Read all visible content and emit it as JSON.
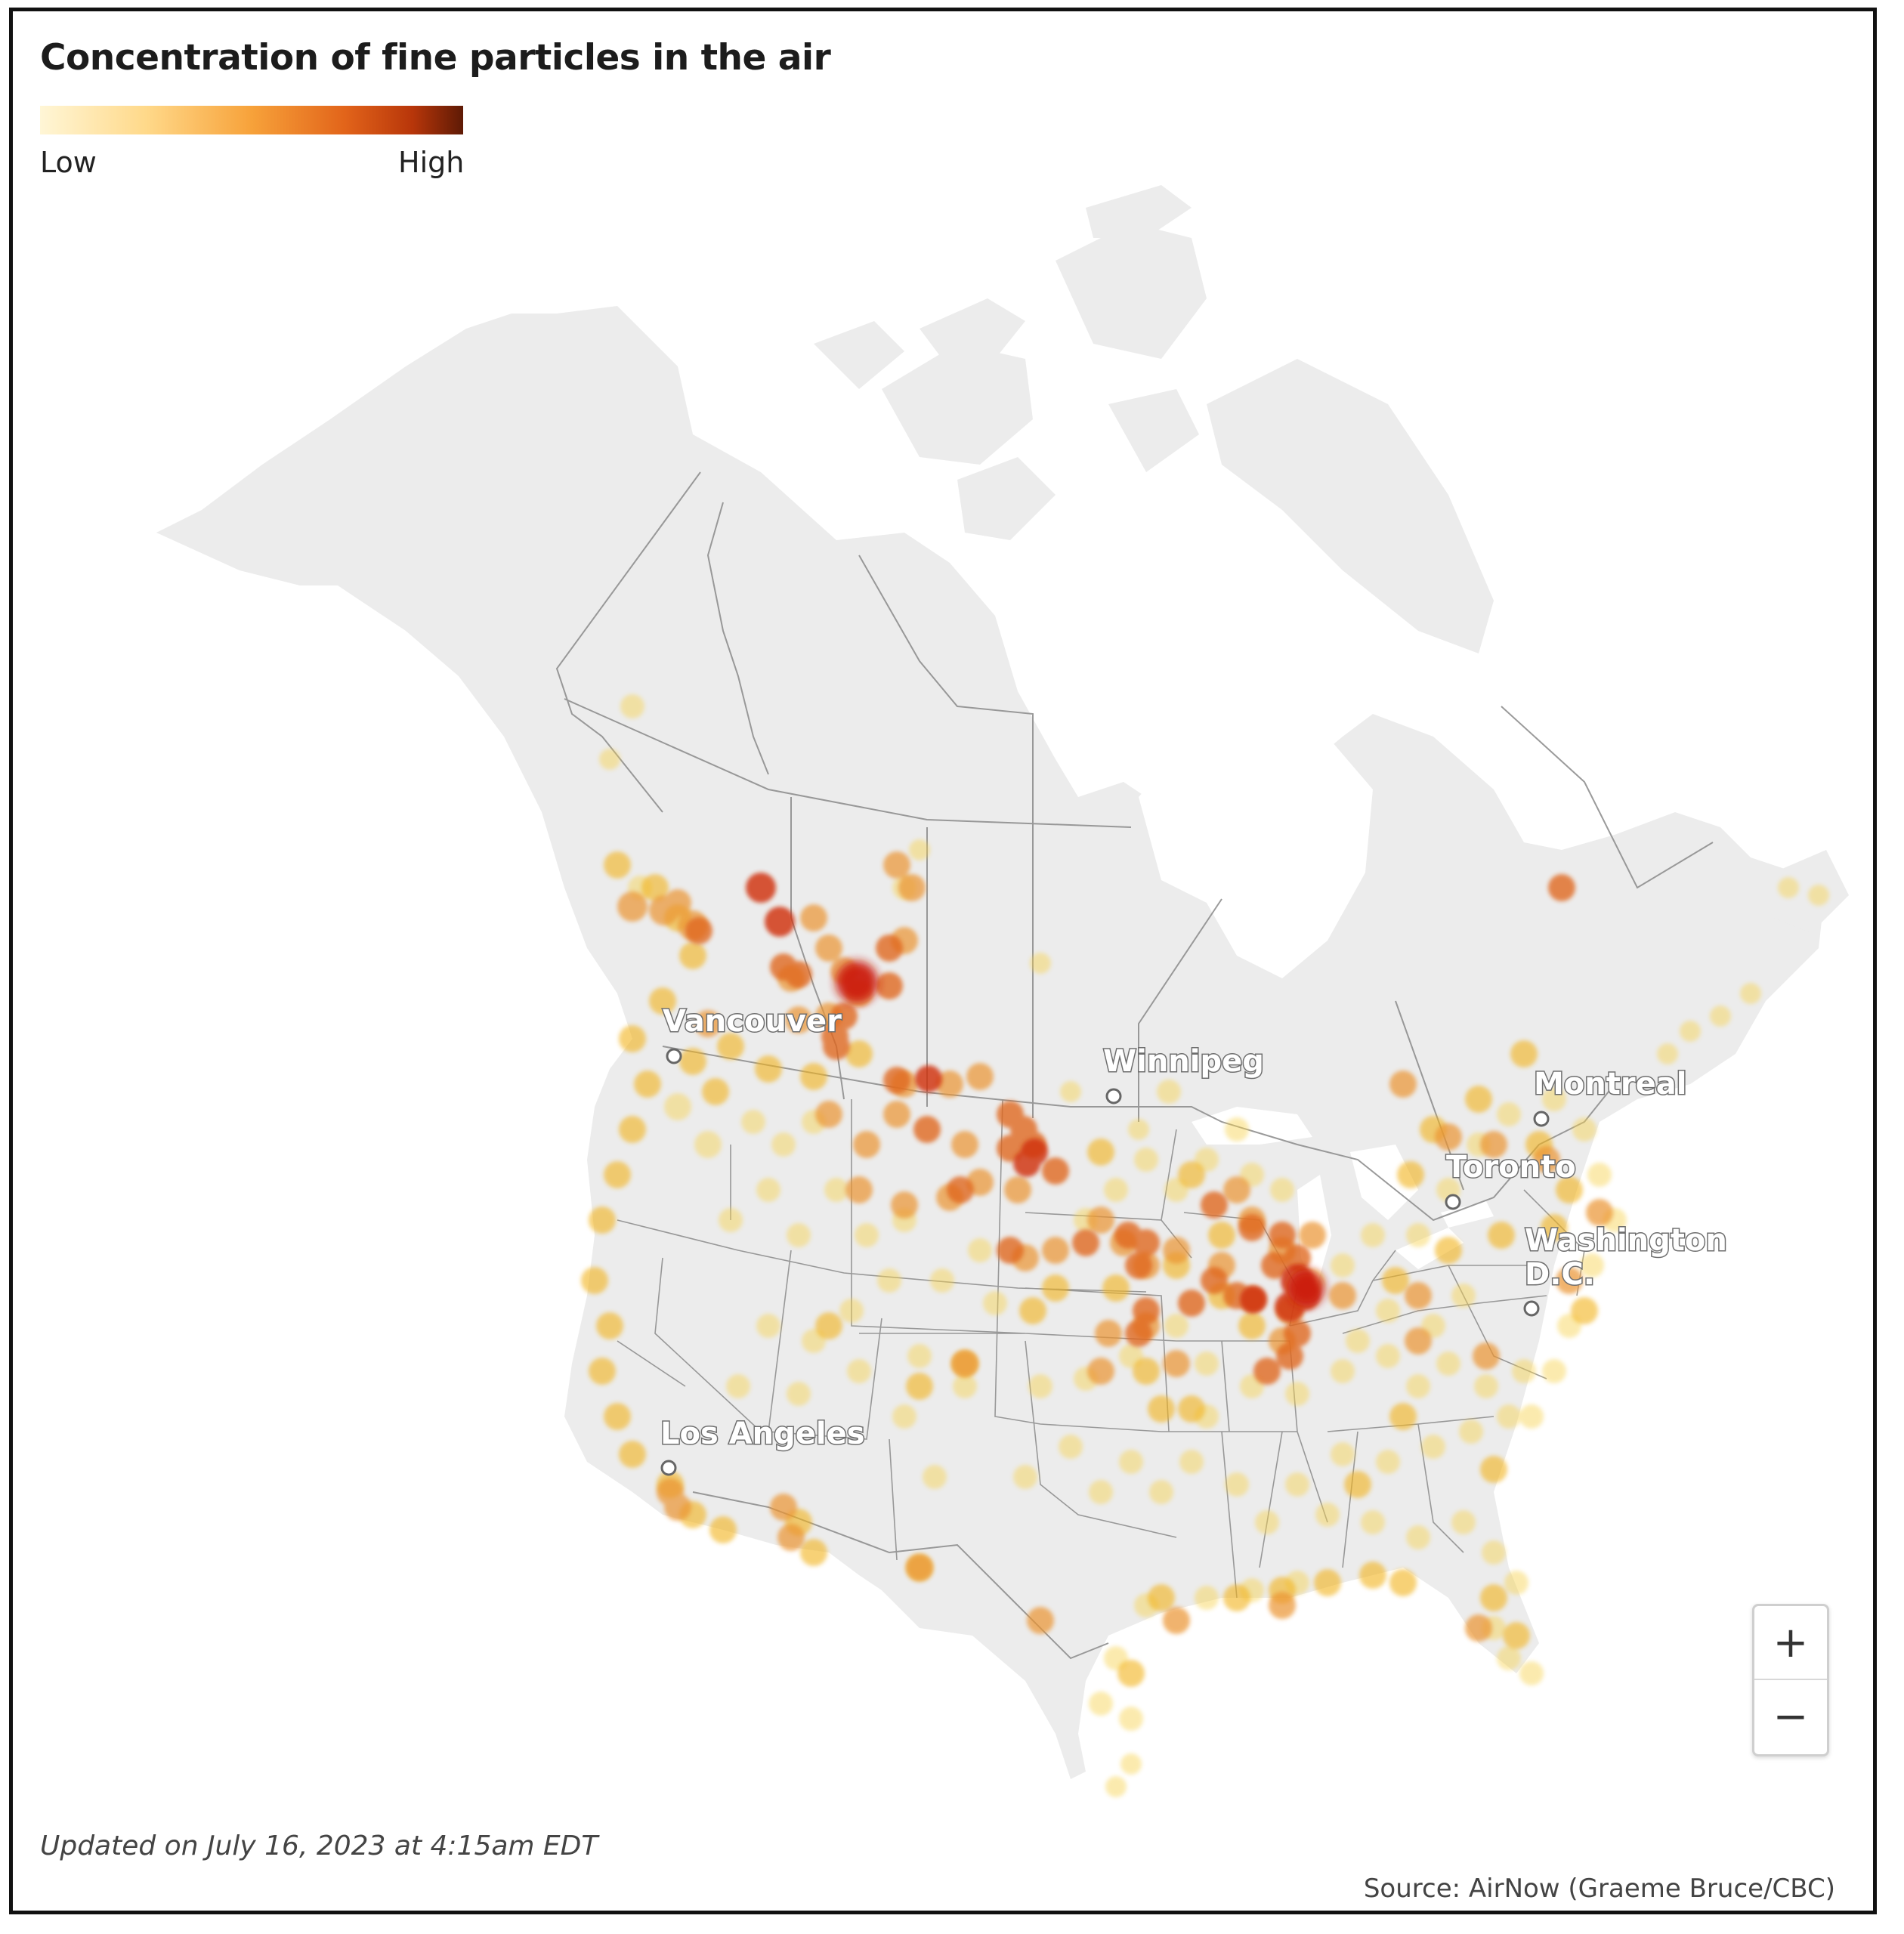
{
  "title": "Concentration of fine particles in the air",
  "legend": {
    "low_label": "Low",
    "high_label": "High",
    "colors": [
      "#fff6d6",
      "#ffd98a",
      "#f7a23a",
      "#e2641a",
      "#b8360a",
      "#5e1a05"
    ]
  },
  "cities": [
    {
      "name": "Vancouver"
    },
    {
      "name": "Winnipeg"
    },
    {
      "name": "Montreal"
    },
    {
      "name": "Toronto"
    },
    {
      "name": "Washington D.C.",
      "line1": "Washington",
      "line2": "D.C."
    },
    {
      "name": "Los Angeles"
    }
  ],
  "zoom": {
    "in_label": "+",
    "out_label": "−"
  },
  "footer": {
    "updated": "Updated on July 16, 2023 at 4:15am EDT",
    "source": "Source: AirNow (Graeme Bruce/CBC)"
  },
  "colors": {
    "land": "#ececec",
    "water": "#ffffff",
    "border": "#8f8f8f"
  }
}
